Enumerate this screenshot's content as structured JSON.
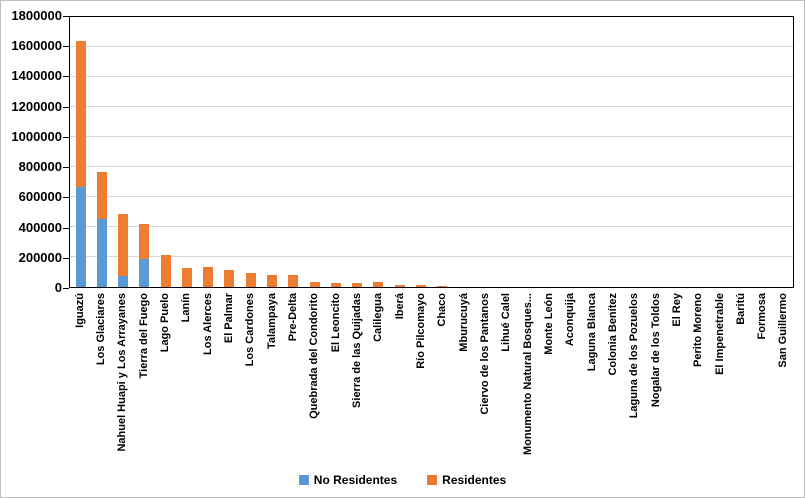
{
  "chart_data": {
    "type": "bar",
    "stacked": true,
    "title": "",
    "xlabel": "",
    "ylabel": "",
    "ylim": [
      0,
      1800000
    ],
    "ytick_step": 200000,
    "yticks": [
      "0",
      "200000",
      "400000",
      "600000",
      "800000",
      "1000000",
      "1200000",
      "1400000",
      "1600000",
      "1800000"
    ],
    "grid": true,
    "legend_position": "bottom",
    "categories": [
      "Iguazú",
      "Los Glaciares",
      "Nahuel Huapi y Los Arrayanes",
      "Tierra del Fuego",
      "Lago Puelo",
      "Lanín",
      "Los Alerces",
      "El Palmar",
      "Los Cardones",
      "Talampaya",
      "Pre-Delta",
      "Quebrada del Condorito",
      "El Leoncito",
      "Sierra de las Quijadas",
      "Calilegua",
      "Iberá",
      "Río Pilcomayo",
      "Chaco",
      "Mburucuyá",
      "Ciervo de los Pantanos",
      "Lihué Calel",
      "Monumento Natural Bosques...",
      "Monte León",
      "Aconquija",
      "Laguna Blanca",
      "Colonia Benítez",
      "Laguna de los Pozuelos",
      "Nogalar de los Toldos",
      "El Rey",
      "Perito Moreno",
      "El Impenetrable",
      "Baritú",
      "Formosa",
      "San Guillermo"
    ],
    "series": [
      {
        "name": "No Residentes",
        "color": "#5b9bd5",
        "values": [
          670000,
          455000,
          75000,
          190000,
          0,
          0,
          0,
          0,
          0,
          0,
          0,
          0,
          0,
          0,
          0,
          0,
          0,
          0,
          0,
          0,
          0,
          0,
          0,
          0,
          0,
          0,
          0,
          0,
          0,
          0,
          0,
          0,
          0,
          0
        ]
      },
      {
        "name": "Residentes",
        "color": "#ed7d31",
        "values": [
          968000,
          315000,
          415000,
          230000,
          212000,
          127000,
          133000,
          112000,
          95000,
          80000,
          78000,
          32000,
          28000,
          30000,
          31000,
          14000,
          14000,
          10000,
          0,
          0,
          0,
          0,
          0,
          0,
          0,
          0,
          0,
          0,
          0,
          0,
          0,
          0,
          0,
          0
        ]
      }
    ]
  },
  "colors": {
    "grid": "#d9d9d9",
    "axis": "#000000",
    "figure_border": "#bfbfbf",
    "background": "#ffffff"
  }
}
